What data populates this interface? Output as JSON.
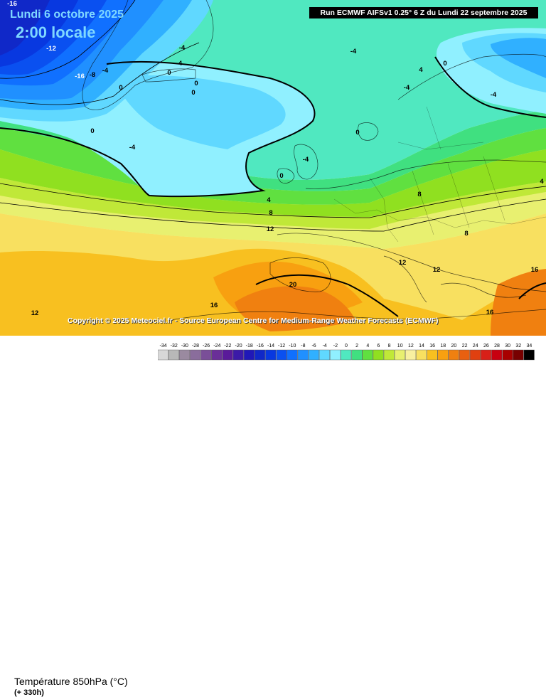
{
  "header": {
    "date": "Lundi 6 octobre 2025",
    "time": "2:00 locale",
    "run_info": "Run ECMWF AIFSv1 0.25° 6 Z du Lundi 22 septembre 2025"
  },
  "copyright": "Copyright © 2025 Meteociel.fr - Source European Centre for Medium-Range Weather Forecasts (ECMWF)",
  "footer": {
    "variable": "Température 850hPa (°C)",
    "lead_time": "(+ 330h)"
  },
  "legend": {
    "ticks": [
      "-34",
      "-32",
      "-30",
      "-28",
      "-26",
      "-24",
      "-22",
      "-20",
      "-18",
      "-16",
      "-14",
      "-12",
      "-10",
      "-8",
      "-6",
      "-4",
      "-2",
      "0",
      "2",
      "4",
      "6",
      "8",
      "10",
      "12",
      "14",
      "16",
      "18",
      "20",
      "22",
      "24",
      "26",
      "28",
      "30",
      "32",
      "34"
    ],
    "colors": [
      "#d8d8d8",
      "#b8b8b8",
      "#9a8aa0",
      "#8a6d9c",
      "#7a4f98",
      "#6a2f98",
      "#5a1a9a",
      "#3c1aa8",
      "#2018b8",
      "#1028c8",
      "#0838e0",
      "#0a50f0",
      "#1070ff",
      "#2090ff",
      "#30b0ff",
      "#60d8ff",
      "#90f0ff",
      "#50e8c0",
      "#40e080",
      "#60e040",
      "#90e020",
      "#c0e838",
      "#e8f070",
      "#f8f0a0",
      "#f8e060",
      "#f8c020",
      "#f8a010",
      "#f08010",
      "#e86010",
      "#e04010",
      "#d82018",
      "#c80010",
      "#a80000",
      "#780000",
      "#000000"
    ]
  },
  "contour_labels": [
    {
      "text": "-16"
    },
    {
      "text": "-12"
    },
    {
      "text": "-16"
    },
    {
      "text": "-8"
    },
    {
      "text": "-4"
    },
    {
      "text": "-4"
    },
    {
      "text": "-4"
    },
    {
      "text": "0"
    },
    {
      "text": "0"
    },
    {
      "text": "0"
    },
    {
      "text": "0"
    },
    {
      "text": "-4"
    },
    {
      "text": "0"
    },
    {
      "text": "-4"
    },
    {
      "text": "4"
    },
    {
      "text": "-4"
    },
    {
      "text": "0"
    },
    {
      "text": "-4"
    },
    {
      "text": "-4"
    },
    {
      "text": "0"
    },
    {
      "text": "0"
    },
    {
      "text": "4"
    },
    {
      "text": "8"
    },
    {
      "text": "12"
    },
    {
      "text": "8"
    },
    {
      "text": "8"
    },
    {
      "text": "4"
    },
    {
      "text": "12"
    },
    {
      "text": "12"
    },
    {
      "text": "16"
    },
    {
      "text": "16"
    },
    {
      "text": "20"
    },
    {
      "text": "12"
    },
    {
      "text": "16"
    }
  ]
}
